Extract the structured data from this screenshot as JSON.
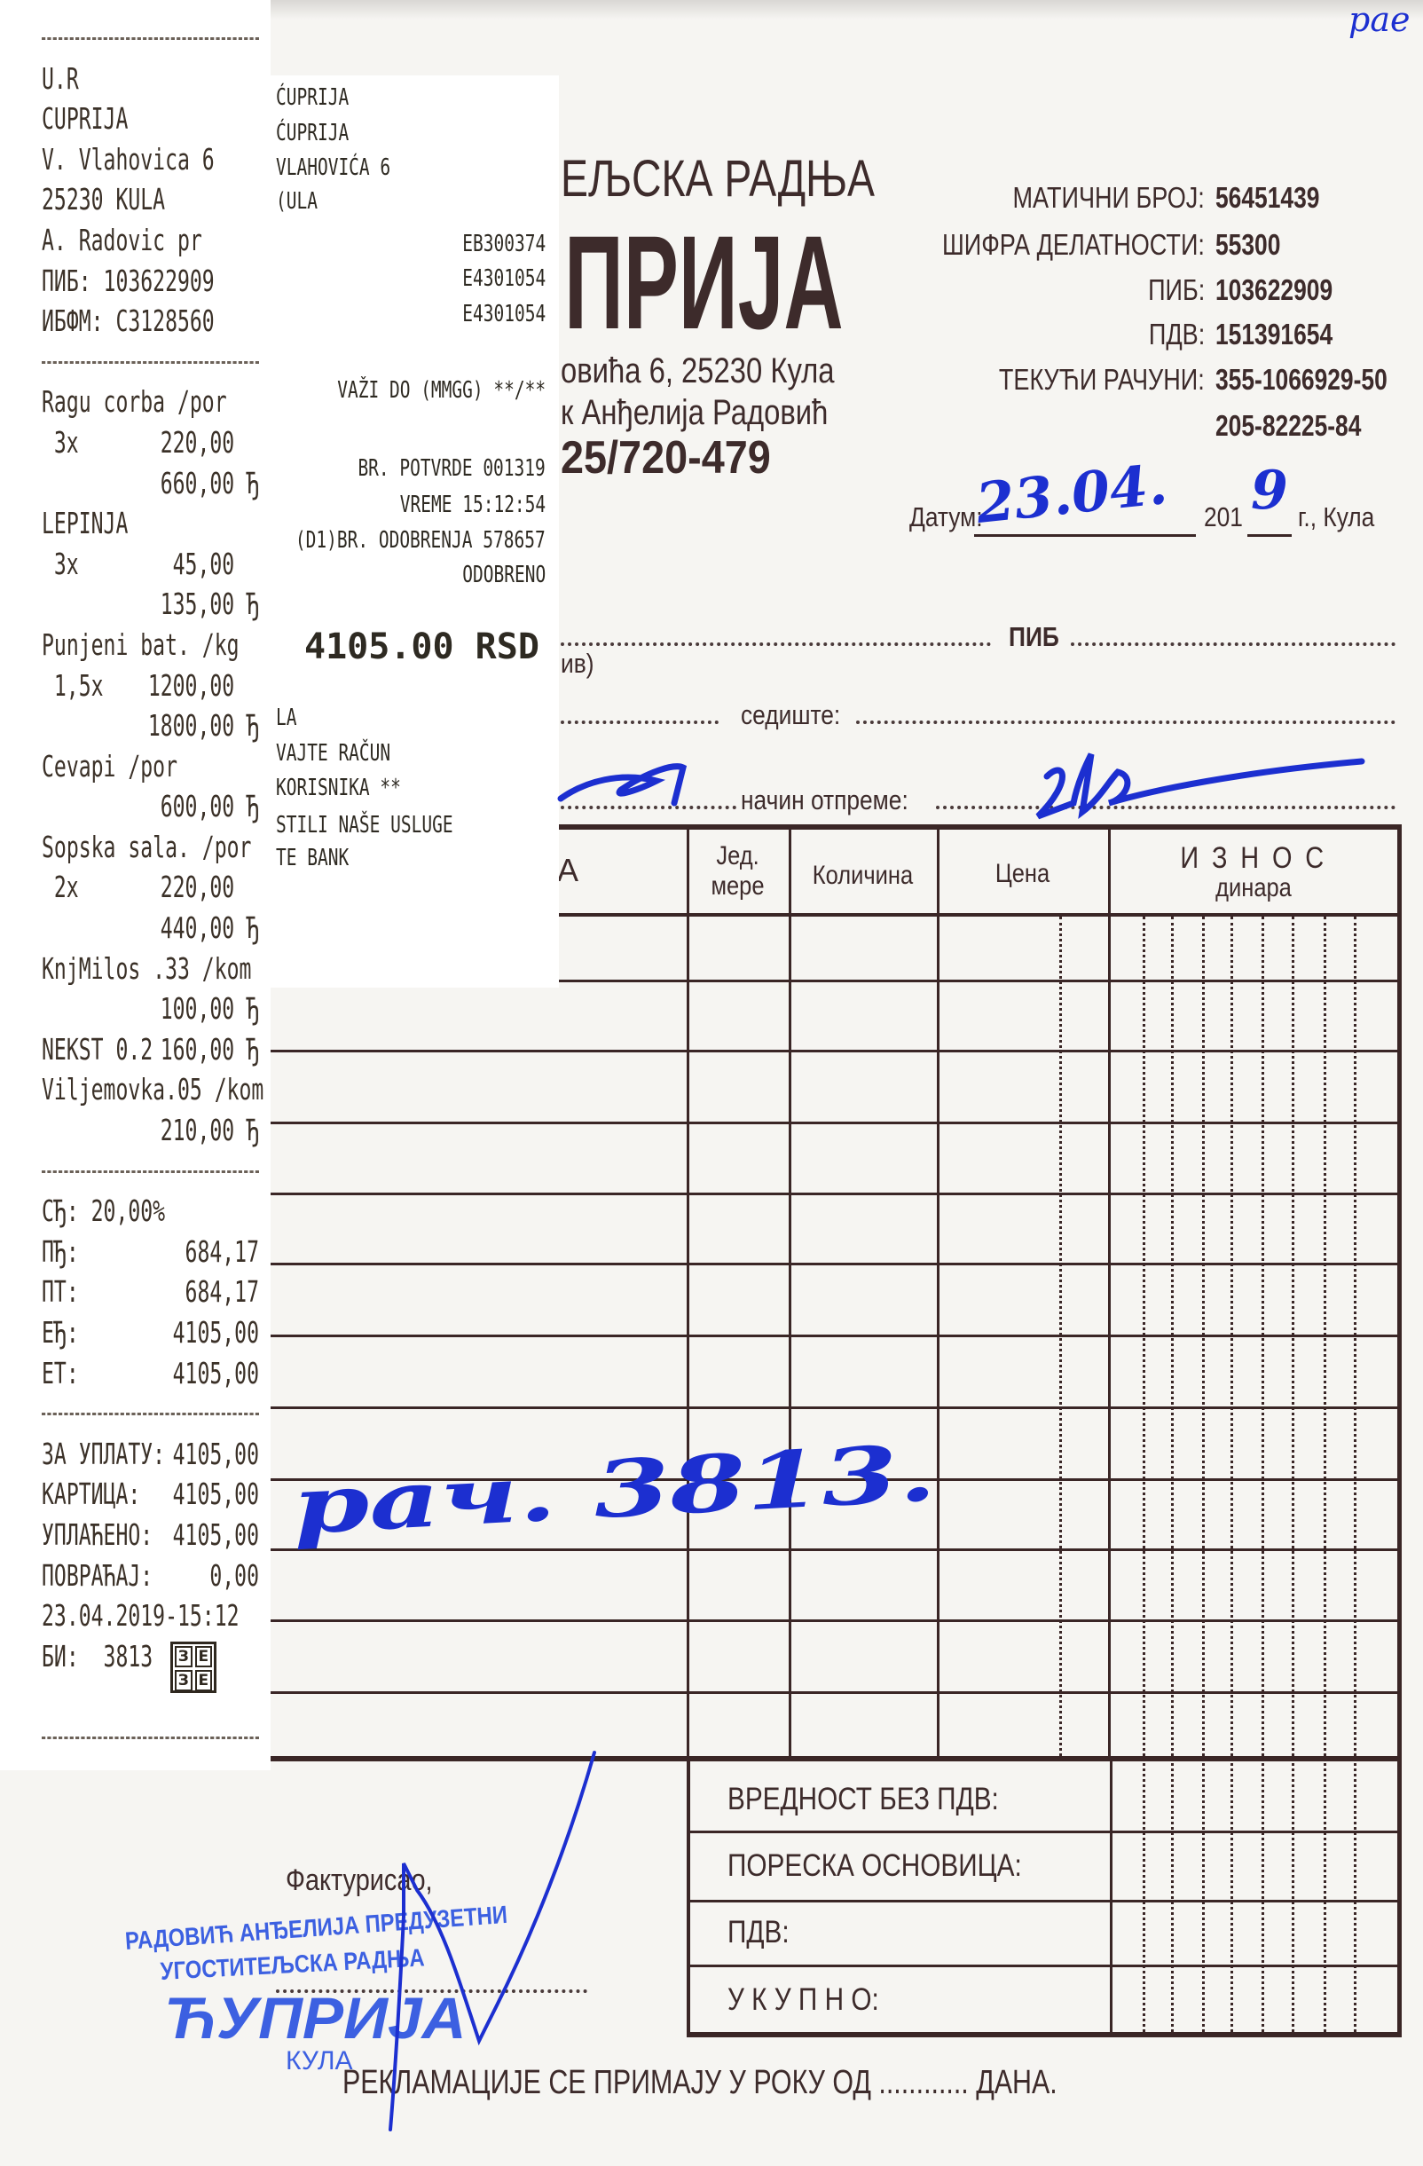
{
  "receipt": {
    "header_name": "U.R",
    "city": "CUPRIJA",
    "street": "V. Vlahovica 6",
    "postal_city": "25230 KULA",
    "owner": "A. Radovic pr",
    "pib_label": "ПИБ:",
    "pib": "103622909",
    "ibfm_label": "ИБФМ:",
    "ibfm": "C3128560",
    "currency_mark": "Ђ",
    "items": [
      {
        "name": "Ragu corba /por",
        "qty": "3x",
        "price": "220,00",
        "total": "660,00"
      },
      {
        "name": "LEPINJA",
        "qty": "3x",
        "price": "45,00",
        "total": "135,00"
      },
      {
        "name": "Punjeni bat. /kg",
        "qty": "1,5x",
        "price": "1200,00",
        "total": "1800,00"
      },
      {
        "name": "Cevapi /por",
        "total": "600,00"
      },
      {
        "name": "Sopska sala. /por",
        "qty": "2x",
        "price": "220,00",
        "total": "440,00"
      },
      {
        "name": "KnjMilos .33 /kom",
        "total": "100,00"
      },
      {
        "name": "NEKST 0.2",
        "total": "160,00"
      },
      {
        "name": "Viljemovka.05 /kom",
        "total": "210,00"
      }
    ],
    "tax": {
      "rate_label": "СЂ:",
      "rate": "20,00%",
      "rows": [
        {
          "label": "ПЂ:",
          "value": "684,17"
        },
        {
          "label": "ПТ:",
          "value": "684,17"
        },
        {
          "label": "ЕЂ:",
          "value": "4105,00"
        },
        {
          "label": "ЕТ:",
          "value": "4105,00"
        }
      ]
    },
    "payment": [
      {
        "label": "ЗА УПЛАТУ:",
        "value": "4105,00"
      },
      {
        "label": "КАРТИЦА:",
        "value": "4105,00"
      },
      {
        "label": "УПЛАЋЕНО:",
        "value": "4105,00"
      },
      {
        "label": "ПОВРАЋАЈ:",
        "value": "0,00"
      }
    ],
    "datetime": "23.04.2019-15:12",
    "bi_label": "БИ:",
    "bi": "3813",
    "logo_letters": [
      "З",
      "Е",
      "З",
      "Е"
    ]
  },
  "card_slip": {
    "lines_left_top": [
      "ĆUPRIJA",
      "ĆUPRIJA",
      "VLAHOVIĆA 6",
      "(ULA"
    ],
    "terminal_ids": [
      "EB300374",
      "E4301054",
      "E4301054"
    ],
    "valid_until": "VAŽI DO (MMGG) **/**",
    "confirmation": "BR. POTVRDE 001319",
    "time": "VREME 15:12:54",
    "approval": "(D1)BR. ODOBRENJA 578657",
    "status": "ODOBRENO",
    "amount": "4105.00 RSD",
    "footer_lines": [
      "LA",
      "VAJTE RAČUN",
      "KORISNIKA **",
      "STILI NAŠE USLUGE",
      "TE BANK"
    ]
  },
  "invoice": {
    "business_type": "ЕЉСКА РАДЊА",
    "business_name": "ПРИЈА",
    "address": "овића 6, 25230 Кула",
    "owner": "к Анђелија Радовић",
    "phone": "25/720-479",
    "info": [
      {
        "label": "МАТИЧНИ БРОЈ:",
        "value": "56451439"
      },
      {
        "label": "ШИФРА ДЕЛАТНОСТИ:",
        "value": "55300"
      },
      {
        "label": "ПИБ:",
        "value": "103622909"
      },
      {
        "label": "ПДВ:",
        "value": "151391654"
      },
      {
        "label": "ТЕКУЋИ РАЧУНИ:",
        "value": "355-1066929-50"
      },
      {
        "label": "",
        "value": "205-82225-84"
      }
    ],
    "date_label": "Датум:",
    "date_handwritten": "23.04.",
    "year_prefix": "201",
    "year_handwritten": "9",
    "date_suffix": "г., Кула",
    "pib_label": "ПИБ",
    "buyer_fragment": "ив)",
    "seat_label": "седиште:",
    "shipping_label": "начин отпреме:",
    "table_headers": {
      "name_fragment": "А",
      "unit_line1": "Јед.",
      "unit_line2": "мере",
      "quantity": "Количина",
      "price": "Цена",
      "amount_line1": "И З Н О С",
      "amount_line2": "динара"
    },
    "handwritten_note": "рач. 3813.",
    "summary": [
      "ВРЕДНОСТ БЕЗ ПДВ:",
      "ПОРЕСКА ОСНОВИЦА:",
      "ПДВ:",
      "У К У П Н О:"
    ],
    "invoiced_by": "Фактурисао,",
    "complaints": "РЕКЛАМАЦИЈЕ СЕ ПРИМАЈУ У РОКУ ОД ............ ДАНА.",
    "corner_note": "рае"
  },
  "stamp": {
    "line1": "РАДОВИЋ АНЂЕЛИЈА ПРЕДУЗЕТНИ",
    "line2": "УГОСТИТЕЉСКА РАДЊА",
    "line3": "ЋУПРИЈА",
    "line4": "КУЛА"
  },
  "colors": {
    "ink_blue": "#1c2fd0",
    "stamp_blue": "#2850e0",
    "print_brown": "#3d2b2b"
  }
}
